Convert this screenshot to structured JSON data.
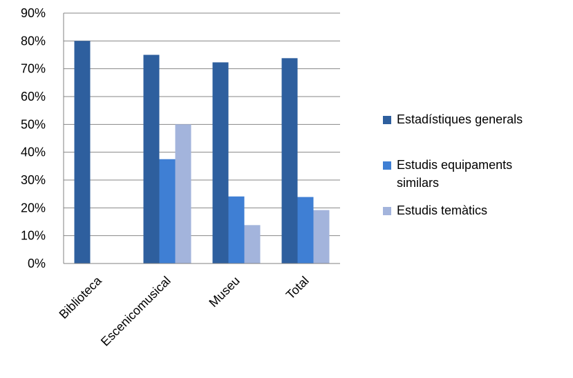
{
  "chart_data": {
    "type": "bar",
    "categories": [
      "Biblioteca",
      "Escenicomusical",
      "Museu",
      "Total"
    ],
    "series": [
      {
        "name": "Estadístiques generals",
        "color": "#2e5f9e",
        "values": [
          80,
          75,
          72.3,
          73.8
        ]
      },
      {
        "name": "Estudis equipaments similars",
        "color": "#3f7fd4",
        "values": [
          0,
          37.5,
          24.1,
          23.9
        ]
      },
      {
        "name": "Estudis temàtics",
        "color": "#a3b4dc",
        "values": [
          0,
          50,
          13.8,
          19.2
        ]
      }
    ],
    "yticks": [
      "0%",
      "10%",
      "20%",
      "30%",
      "40%",
      "50%",
      "60%",
      "70%",
      "80%",
      "90%"
    ],
    "ylim": [
      0,
      90
    ],
    "grid": true,
    "legend_position": "right"
  }
}
